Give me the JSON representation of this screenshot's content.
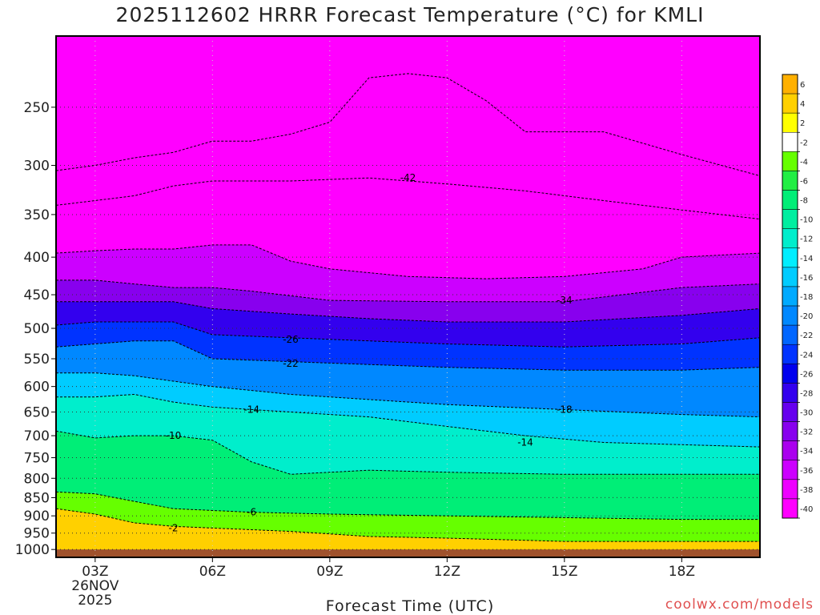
{
  "title": "2025112602 HRRR Forecast Temperature (°C) for KMLI",
  "credit": "coolwx.com/models",
  "chart_data": {
    "type": "heatmap",
    "title": "2025112602 HRRR Forecast Temperature (°C) for KMLI",
    "xlabel": "Forecast Time (UTC)",
    "ylabel": "",
    "x_ticks": [
      {
        "hour": 3,
        "label": "03Z",
        "sub": [
          "26NOV",
          "2025"
        ]
      },
      {
        "hour": 6,
        "label": "06Z",
        "sub": []
      },
      {
        "hour": 9,
        "label": "09Z",
        "sub": []
      },
      {
        "hour": 12,
        "label": "12Z",
        "sub": []
      },
      {
        "hour": 15,
        "label": "15Z",
        "sub": []
      },
      {
        "hour": 18,
        "label": "18Z",
        "sub": []
      }
    ],
    "xlim": [
      2,
      20
    ],
    "y_ticks": [
      250,
      300,
      350,
      400,
      450,
      500,
      550,
      600,
      650,
      700,
      750,
      800,
      850,
      900,
      950,
      1000
    ],
    "ylim": [
      200,
      1025
    ],
    "y_scale": "log",
    "grid": true,
    "colorbar_levels": [
      6,
      4,
      2,
      -2,
      -4,
      -6,
      -8,
      -10,
      -12,
      -14,
      -16,
      -18,
      -20,
      -22,
      -24,
      -26,
      -28,
      -30,
      -32,
      -34,
      -36,
      -38,
      -40
    ],
    "colorbar_colors": [
      "#ffb000",
      "#ffd000",
      "#ffff00",
      "#ffffff",
      "#66ff00",
      "#22ee44",
      "#00ee77",
      "#00eea0",
      "#00eecc",
      "#00eeff",
      "#00ccff",
      "#00aaff",
      "#0088ff",
      "#0066ff",
      "#0033ff",
      "#0000ee",
      "#3300ee",
      "#6600ee",
      "#8800ee",
      "#aa00ee",
      "#cc00ff",
      "#ee00ff",
      "#ff00ff"
    ],
    "ground_color": "#a0522d",
    "isotherms": [
      {
        "value": -2,
        "label": "-2",
        "points": [
          [
            2,
            880
          ],
          [
            3,
            895
          ],
          [
            4,
            920
          ],
          [
            5,
            930
          ],
          [
            6,
            935
          ],
          [
            8,
            945
          ],
          [
            10,
            960
          ],
          [
            12,
            965
          ],
          [
            15,
            975
          ],
          [
            18,
            975
          ],
          [
            20,
            975
          ]
        ]
      },
      {
        "value": -6,
        "label": "-6",
        "points": [
          [
            2,
            835
          ],
          [
            3,
            840
          ],
          [
            4,
            860
          ],
          [
            5,
            880
          ],
          [
            7,
            890
          ],
          [
            9,
            895
          ],
          [
            12,
            900
          ],
          [
            15,
            905
          ],
          [
            18,
            910
          ],
          [
            20,
            910
          ]
        ]
      },
      {
        "value": -10,
        "label": "-10",
        "points": [
          [
            2,
            690
          ],
          [
            3,
            705
          ],
          [
            4,
            700
          ],
          [
            5,
            700
          ],
          [
            6,
            710
          ],
          [
            7,
            760
          ],
          [
            8,
            790
          ],
          [
            10,
            780
          ],
          [
            12,
            785
          ],
          [
            15,
            790
          ],
          [
            18,
            790
          ],
          [
            20,
            790
          ]
        ]
      },
      {
        "value": -14,
        "label": "-14",
        "points": [
          [
            2,
            620
          ],
          [
            3,
            620
          ],
          [
            4,
            615
          ],
          [
            5,
            630
          ],
          [
            6,
            640
          ],
          [
            8,
            650
          ],
          [
            10,
            660
          ],
          [
            12,
            680
          ],
          [
            14,
            700
          ],
          [
            16,
            715
          ],
          [
            18,
            720
          ],
          [
            20,
            725
          ]
        ]
      },
      {
        "value": -18,
        "label": "-18",
        "points": [
          [
            2,
            575
          ],
          [
            3,
            575
          ],
          [
            4,
            580
          ],
          [
            5,
            590
          ],
          [
            6,
            600
          ],
          [
            8,
            615
          ],
          [
            10,
            625
          ],
          [
            12,
            635
          ],
          [
            15,
            645
          ],
          [
            18,
            655
          ],
          [
            20,
            660
          ]
        ]
      },
      {
        "value": -22,
        "label": "-22",
        "points": [
          [
            2,
            530
          ],
          [
            3,
            525
          ],
          [
            4,
            520
          ],
          [
            5,
            520
          ],
          [
            6,
            550
          ],
          [
            8,
            555
          ],
          [
            10,
            560
          ],
          [
            12,
            565
          ],
          [
            15,
            570
          ],
          [
            18,
            570
          ],
          [
            20,
            565
          ]
        ]
      },
      {
        "value": -26,
        "label": "-26",
        "points": [
          [
            2,
            495
          ],
          [
            3,
            490
          ],
          [
            4,
            490
          ],
          [
            5,
            490
          ],
          [
            6,
            510
          ],
          [
            8,
            515
          ],
          [
            10,
            520
          ],
          [
            12,
            525
          ],
          [
            15,
            530
          ],
          [
            18,
            525
          ],
          [
            20,
            515
          ]
        ]
      },
      {
        "value": -30,
        "label": "-30",
        "points": [
          [
            2,
            460
          ],
          [
            3,
            460
          ],
          [
            4,
            460
          ],
          [
            5,
            460
          ],
          [
            6,
            470
          ],
          [
            8,
            478
          ],
          [
            10,
            485
          ],
          [
            12,
            490
          ],
          [
            15,
            490
          ],
          [
            18,
            480
          ],
          [
            20,
            470
          ]
        ]
      },
      {
        "value": -34,
        "label": "-34",
        "points": [
          [
            2,
            430
          ],
          [
            3,
            430
          ],
          [
            4,
            435
          ],
          [
            5,
            440
          ],
          [
            6,
            440
          ],
          [
            7,
            445
          ],
          [
            9,
            458
          ],
          [
            12,
            460
          ],
          [
            15,
            460
          ],
          [
            18,
            440
          ],
          [
            20,
            435
          ]
        ]
      },
      {
        "value": -38,
        "label": "-38",
        "points": [
          [
            2,
            395
          ],
          [
            3,
            392
          ],
          [
            4,
            390
          ],
          [
            5,
            390
          ],
          [
            6,
            385
          ],
          [
            7,
            385
          ],
          [
            8,
            405
          ],
          [
            9,
            415
          ],
          [
            11,
            425
          ],
          [
            13,
            428
          ],
          [
            15,
            425
          ],
          [
            17,
            415
          ],
          [
            18,
            400
          ],
          [
            20,
            395
          ]
        ]
      },
      {
        "value": -42,
        "label": "-42",
        "points": [
          [
            2,
            340
          ],
          [
            3,
            335
          ],
          [
            4,
            330
          ],
          [
            5,
            320
          ],
          [
            6,
            315
          ],
          [
            8,
            315
          ],
          [
            10,
            312
          ],
          [
            12,
            318
          ],
          [
            14,
            325
          ],
          [
            16,
            335
          ],
          [
            18,
            345
          ],
          [
            20,
            355
          ]
        ]
      },
      {
        "value": -46,
        "label": "",
        "points": [
          [
            2,
            305
          ],
          [
            3,
            300
          ],
          [
            4,
            293
          ],
          [
            5,
            288
          ],
          [
            6,
            278
          ],
          [
            7,
            278
          ],
          [
            8,
            272
          ],
          [
            9,
            262
          ],
          [
            10,
            228
          ],
          [
            11,
            225
          ],
          [
            12,
            228
          ],
          [
            13,
            245
          ],
          [
            14,
            270
          ],
          [
            16,
            270
          ],
          [
            18,
            290
          ],
          [
            20,
            310
          ]
        ]
      }
    ],
    "contour_labels": [
      {
        "value": "-42",
        "hour": 11,
        "p": 312
      },
      {
        "value": "-34",
        "hour": 15,
        "p": 458
      },
      {
        "value": "-26",
        "hour": 8,
        "p": 518
      },
      {
        "value": "-22",
        "hour": 8,
        "p": 558
      },
      {
        "value": "-18",
        "hour": 15,
        "p": 645
      },
      {
        "value": "-14",
        "hour": 7,
        "p": 645
      },
      {
        "value": "-14",
        "hour": 14,
        "p": 715
      },
      {
        "value": "-10",
        "hour": 5,
        "p": 700
      },
      {
        "value": "-6",
        "hour": 7,
        "p": 890
      },
      {
        "value": "-2",
        "hour": 5,
        "p": 935
      }
    ]
  }
}
